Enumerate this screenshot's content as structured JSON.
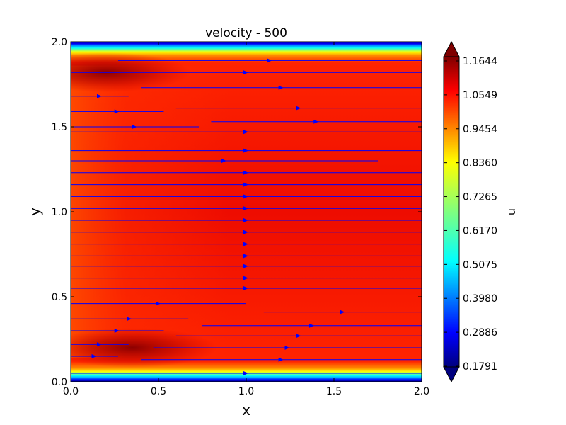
{
  "chart_data": {
    "type": "heatmap",
    "title": "velocity - 500",
    "xlabel": "x",
    "ylabel": "y",
    "xlim": [
      0.0,
      2.0
    ],
    "ylim": [
      0.0,
      2.0
    ],
    "x_ticks": [
      "0.0",
      "0.5",
      "1.0",
      "1.5",
      "2.0"
    ],
    "y_ticks": [
      "0.0",
      "0.5",
      "1.0",
      "1.5",
      "2.0"
    ],
    "grid": false,
    "colormap": "jet",
    "colorbar": {
      "label": "u",
      "ticks": [
        "1.1644",
        "1.0549",
        "0.9454",
        "0.8360",
        "0.7265",
        "0.6170",
        "0.5075",
        "0.3980",
        "0.2886",
        "0.1791"
      ],
      "min": 0.1791,
      "max": 1.1644,
      "extend": "both"
    },
    "field": {
      "wall_value": 0.1791,
      "core_value": 1.06,
      "peak_value": 1.16,
      "peak_regions": [
        {
          "x": 0.2,
          "y": 1.82
        },
        {
          "x": 0.35,
          "y": 0.2
        }
      ]
    },
    "streamline_color": "#0000ff",
    "streamlines": [
      {
        "y": 1.89,
        "x_start": 0.27,
        "x_end": 2.0
      },
      {
        "y": 1.82,
        "x_start": 0.0,
        "x_end": 2.0
      },
      {
        "y": 1.73,
        "x_start": 0.4,
        "x_end": 2.0
      },
      {
        "y": 1.68,
        "x_start": 0.0,
        "x_end": 0.33
      },
      {
        "y": 1.61,
        "x_start": 0.6,
        "x_end": 2.0
      },
      {
        "y": 1.59,
        "x_start": 0.0,
        "x_end": 0.53
      },
      {
        "y": 1.53,
        "x_start": 0.8,
        "x_end": 2.0
      },
      {
        "y": 1.5,
        "x_start": 0.0,
        "x_end": 0.73
      },
      {
        "y": 1.47,
        "x_start": 0.0,
        "x_end": 2.0
      },
      {
        "y": 1.36,
        "x_start": 0.0,
        "x_end": 2.0
      },
      {
        "y": 1.3,
        "x_start": 0.0,
        "x_end": 1.75
      },
      {
        "y": 1.23,
        "x_start": 0.0,
        "x_end": 2.0
      },
      {
        "y": 1.16,
        "x_start": 0.0,
        "x_end": 2.0
      },
      {
        "y": 1.09,
        "x_start": 0.0,
        "x_end": 2.0
      },
      {
        "y": 1.02,
        "x_start": 0.0,
        "x_end": 2.0
      },
      {
        "y": 0.95,
        "x_start": 0.0,
        "x_end": 2.0
      },
      {
        "y": 0.88,
        "x_start": 0.0,
        "x_end": 2.0
      },
      {
        "y": 0.81,
        "x_start": 0.0,
        "x_end": 2.0
      },
      {
        "y": 0.74,
        "x_start": 0.0,
        "x_end": 2.0
      },
      {
        "y": 0.68,
        "x_start": 0.0,
        "x_end": 2.0
      },
      {
        "y": 0.61,
        "x_start": 0.0,
        "x_end": 2.0
      },
      {
        "y": 0.55,
        "x_start": 0.0,
        "x_end": 2.0
      },
      {
        "y": 0.46,
        "x_start": 0.0,
        "x_end": 1.0
      },
      {
        "y": 0.41,
        "x_start": 1.1,
        "x_end": 2.0
      },
      {
        "y": 0.37,
        "x_start": 0.0,
        "x_end": 0.67
      },
      {
        "y": 0.33,
        "x_start": 0.75,
        "x_end": 2.0
      },
      {
        "y": 0.3,
        "x_start": 0.0,
        "x_end": 0.53
      },
      {
        "y": 0.27,
        "x_start": 0.6,
        "x_end": 2.0
      },
      {
        "y": 0.22,
        "x_start": 0.0,
        "x_end": 0.33
      },
      {
        "y": 0.2,
        "x_start": 0.47,
        "x_end": 2.0
      },
      {
        "y": 0.15,
        "x_start": 0.0,
        "x_end": 0.27
      },
      {
        "y": 0.13,
        "x_start": 0.4,
        "x_end": 2.0
      },
      {
        "y": 0.05,
        "x_start": 0.0,
        "x_end": 2.0
      }
    ]
  }
}
